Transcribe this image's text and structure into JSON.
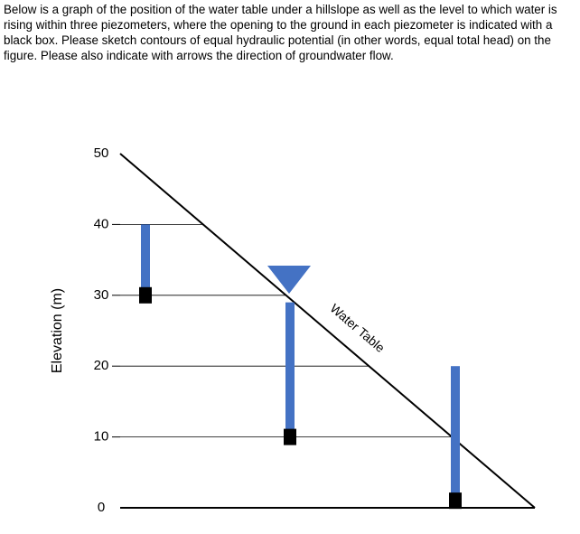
{
  "question": "Below is a graph of the position of the water table under a hillslope as well as the level to which water is rising within three piezometers, where the opening to the ground in each piezometer is indicated with a black box.  Please sketch contours of equal hydraulic potential (in other words, equal total head) on the figure.  Please also indicate with arrows the direction of groundwater flow.",
  "figure": {
    "y_label": "Elevation (m)",
    "ylim": [
      0,
      50
    ],
    "yticks": [
      0,
      10,
      20,
      30,
      40,
      50
    ],
    "water_table_label": "Water Table",
    "piezometers": [
      {
        "water_level": 40,
        "opening": 30
      },
      {
        "water_level": 29,
        "opening": 10
      },
      {
        "water_level": 20,
        "opening": 1
      }
    ]
  }
}
